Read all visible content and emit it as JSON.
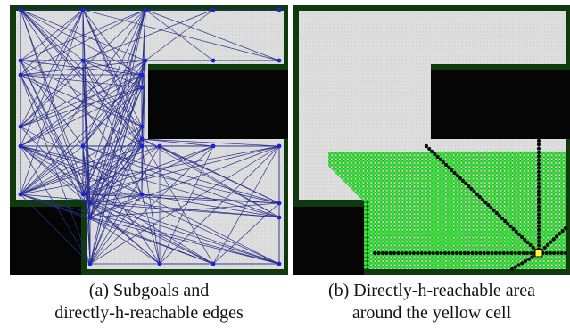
{
  "figure": {
    "panel_a": {
      "caption_line1": "(a) Subgoals and",
      "caption_line2": "directly-h-reachable edges"
    },
    "panel_b": {
      "caption_line1": "(b) Directly-h-reachable area",
      "caption_line2": "around the yellow cell"
    }
  },
  "colors": {
    "free_floor": "#dcdcdc",
    "obstacle": "#050505",
    "wall_border": "#0e3a0e",
    "subgoal_node": "#1a22d8",
    "edge": "#2a2f8a",
    "reachable_cell": "#33e633",
    "reachable_ray": "#0a0a0a",
    "source_cell": "#ffff33"
  },
  "icons": {
    "subgoal": "blue-dot",
    "reachable": "green-dot",
    "source": "yellow-cell"
  }
}
